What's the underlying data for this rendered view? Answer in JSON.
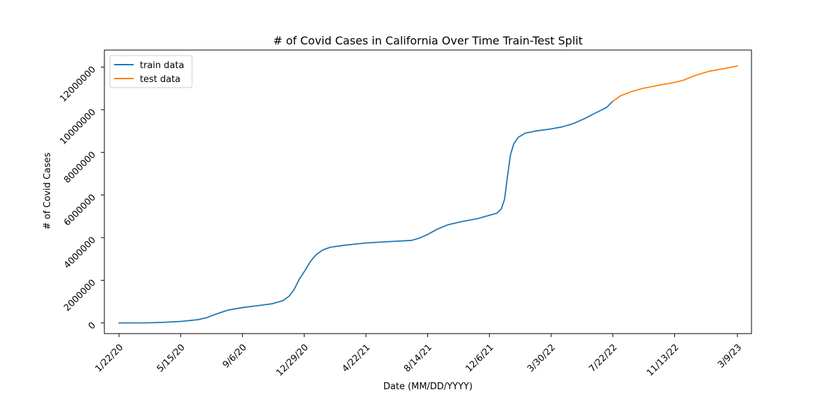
{
  "chart_data": {
    "type": "line",
    "title": "# of Covid Cases in California Over Time Train-Test Split",
    "xlabel": "Date (MM/DD/YYYY)",
    "ylabel": "# of Covid Cases",
    "xlim": [
      "12/26/19",
      "4/4/23"
    ],
    "ylim": [
      -500000,
      12800000
    ],
    "x_ticks": [
      "1/22/20",
      "5/15/20",
      "9/6/20",
      "12/29/20",
      "4/22/21",
      "8/14/21",
      "12/6/21",
      "3/30/22",
      "7/22/22",
      "11/13/22",
      "3/9/23"
    ],
    "y_ticks": [
      0,
      2000000,
      4000000,
      6000000,
      8000000,
      10000000,
      12000000
    ],
    "y_tick_labels": [
      "0",
      "2000000",
      "4000000",
      "6000000",
      "8000000",
      "10000000",
      "12000000"
    ],
    "grid": false,
    "legend_position": "top-left",
    "series": [
      {
        "name": "train data",
        "color": "#1f77b4",
        "points": [
          [
            "1/22/20",
            0
          ],
          [
            "3/15/20",
            5000
          ],
          [
            "4/15/20",
            30000
          ],
          [
            "5/15/20",
            70000
          ],
          [
            "6/15/20",
            150000
          ],
          [
            "7/1/20",
            240000
          ],
          [
            "7/20/20",
            420000
          ],
          [
            "8/10/20",
            600000
          ],
          [
            "9/6/20",
            720000
          ],
          [
            "10/1/20",
            800000
          ],
          [
            "10/31/20",
            900000
          ],
          [
            "11/20/20",
            1050000
          ],
          [
            "12/1/20",
            1250000
          ],
          [
            "12/10/20",
            1550000
          ],
          [
            "12/20/20",
            2050000
          ],
          [
            "12/29/20",
            2400000
          ],
          [
            "1/10/21",
            2900000
          ],
          [
            "1/20/21",
            3200000
          ],
          [
            "2/1/21",
            3420000
          ],
          [
            "2/15/21",
            3550000
          ],
          [
            "3/15/21",
            3650000
          ],
          [
            "4/22/21",
            3750000
          ],
          [
            "6/1/21",
            3810000
          ],
          [
            "7/15/21",
            3870000
          ],
          [
            "7/30/21",
            3980000
          ],
          [
            "8/14/21",
            4150000
          ],
          [
            "9/1/21",
            4400000
          ],
          [
            "9/20/21",
            4600000
          ],
          [
            "10/15/21",
            4750000
          ],
          [
            "11/15/21",
            4900000
          ],
          [
            "12/6/21",
            5050000
          ],
          [
            "12/20/21",
            5150000
          ],
          [
            "12/28/21",
            5350000
          ],
          [
            "1/3/22",
            5800000
          ],
          [
            "1/8/22",
            6800000
          ],
          [
            "1/14/22",
            7900000
          ],
          [
            "1/20/22",
            8400000
          ],
          [
            "1/28/22",
            8700000
          ],
          [
            "2/10/22",
            8900000
          ],
          [
            "3/1/22",
            9000000
          ],
          [
            "3/30/22",
            9100000
          ],
          [
            "4/20/22",
            9200000
          ],
          [
            "5/10/22",
            9350000
          ],
          [
            "6/1/22",
            9600000
          ],
          [
            "6/20/22",
            9850000
          ],
          [
            "7/10/22",
            10100000
          ],
          [
            "7/22/22",
            10400000
          ]
        ]
      },
      {
        "name": "test data",
        "color": "#ff7f0e",
        "points": [
          [
            "7/22/22",
            10400000
          ],
          [
            "8/5/22",
            10650000
          ],
          [
            "8/25/22",
            10850000
          ],
          [
            "9/15/22",
            11000000
          ],
          [
            "10/15/22",
            11150000
          ],
          [
            "11/13/22",
            11280000
          ],
          [
            "12/1/22",
            11400000
          ],
          [
            "12/20/22",
            11600000
          ],
          [
            "1/15/23",
            11800000
          ],
          [
            "2/10/23",
            11920000
          ],
          [
            "3/9/23",
            12050000
          ]
        ]
      }
    ]
  }
}
